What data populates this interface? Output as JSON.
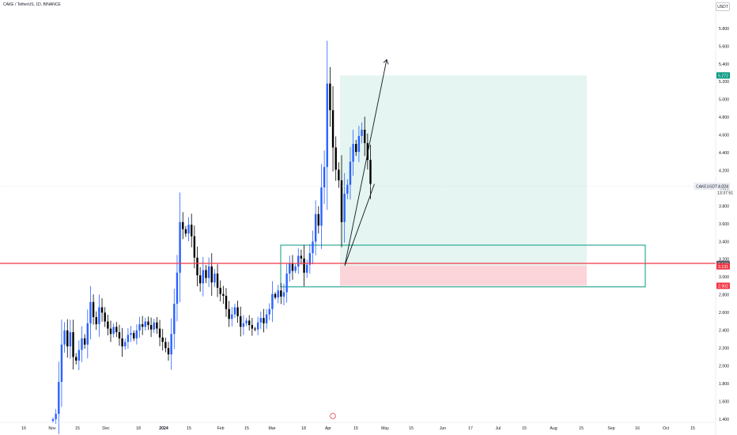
{
  "header": {
    "title": "CAKE / TetherUS, 1D, BINANCE",
    "currency": "USDT"
  },
  "colors": {
    "up": "#2962ff",
    "down": "#000000",
    "stop_line": "#f23645",
    "zone_border": "#089981",
    "target_fill": "#e5f5f1",
    "stop_fill": "#fbd5d9",
    "axis_text": "#131722"
  },
  "chart_data": {
    "type": "candlestick",
    "title": "CAKE / TetherUS, 1D, BINANCE",
    "x_ticks": [
      "16",
      "Nov",
      "15",
      "Dec",
      "18",
      "2024",
      "15",
      "Feb",
      "15",
      "Mar",
      "18",
      "Apr",
      "15",
      "May",
      "15",
      "Jun",
      "17",
      "Jul",
      "15",
      "Aug",
      "15",
      "Sep",
      "16",
      "Oct",
      "15"
    ],
    "y_ticks": [
      "5.800",
      "5.600",
      "5.400",
      "5.200",
      "5.000",
      "4.800",
      "4.600",
      "4.400",
      "4.200",
      "4.000",
      "3.800",
      "3.600",
      "3.400",
      "3.200",
      "3.000",
      "2.800",
      "2.600",
      "2.400",
      "2.200",
      "2.000",
      "1.800",
      "1.600",
      "1.400"
    ],
    "ylim": [
      1.4,
      6.05
    ],
    "grid": false,
    "closes": [
      1.4,
      1.46,
      1.82,
      2.24,
      2.4,
      2.22,
      2.38,
      2.1,
      2.06,
      2.18,
      2.31,
      2.24,
      2.48,
      2.72,
      2.55,
      2.47,
      2.66,
      2.6,
      2.5,
      2.42,
      2.36,
      2.44,
      2.38,
      2.31,
      2.22,
      2.27,
      2.35,
      2.37,
      2.31,
      2.4,
      2.47,
      2.44,
      2.5,
      2.46,
      2.41,
      2.49,
      2.42,
      2.32,
      2.27,
      2.2,
      2.13,
      2.36,
      2.7,
      3.05,
      3.62,
      3.54,
      3.49,
      3.59,
      3.46,
      3.22,
      3.02,
      2.93,
      3.08,
      2.99,
      3.12,
      2.94,
      3.04,
      2.88,
      2.81,
      2.79,
      2.64,
      2.53,
      2.58,
      2.66,
      2.56,
      2.44,
      2.48,
      2.51,
      2.46,
      2.42,
      2.41,
      2.49,
      2.54,
      2.48,
      2.58,
      2.64,
      2.81,
      2.77,
      2.85,
      2.78,
      2.83,
      3.04,
      3.15,
      3.07,
      3.12,
      3.24,
      3.21,
      3.05,
      3.14,
      3.27,
      3.4,
      3.71,
      3.58,
      4.01,
      4.24,
      5.18,
      4.88,
      4.46,
      4.21,
      4.09,
      3.62,
      3.94,
      4.04,
      4.3,
      4.5,
      4.41,
      4.59,
      4.66,
      4.51,
      4.32,
      4.05
    ],
    "last_price": "4.024",
    "countdown": "13:37:51",
    "symbol_label": "CAKEUSDT",
    "position": {
      "entry": "3.131",
      "take_profit": "5.272",
      "stop": "2.902",
      "entry_upper": "3.143"
    },
    "projection": {
      "dip_to": 3.13,
      "target": 5.45
    }
  }
}
